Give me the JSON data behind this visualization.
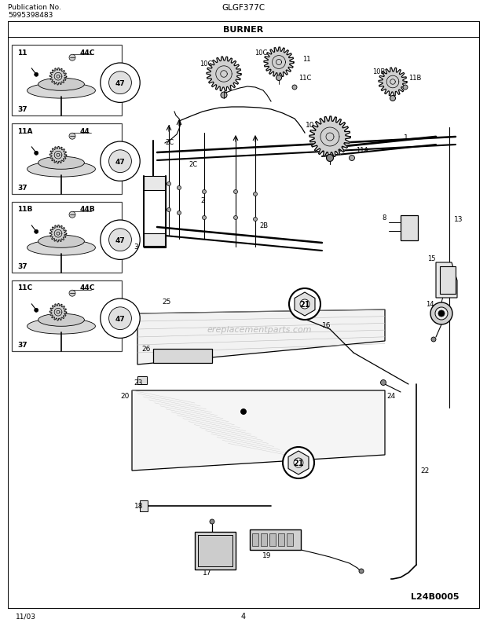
{
  "title_center": "GLGF377C",
  "subtitle": "BURNER",
  "pub_no_label": "Publication No.",
  "pub_no": "5995398483",
  "date": "11/03",
  "page": "4",
  "diagram_code": "L24B0005",
  "bg_color": "#ffffff",
  "watermark": "ereplacementparts.com",
  "fig_width": 6.2,
  "fig_height": 8.03,
  "dpi": 100
}
